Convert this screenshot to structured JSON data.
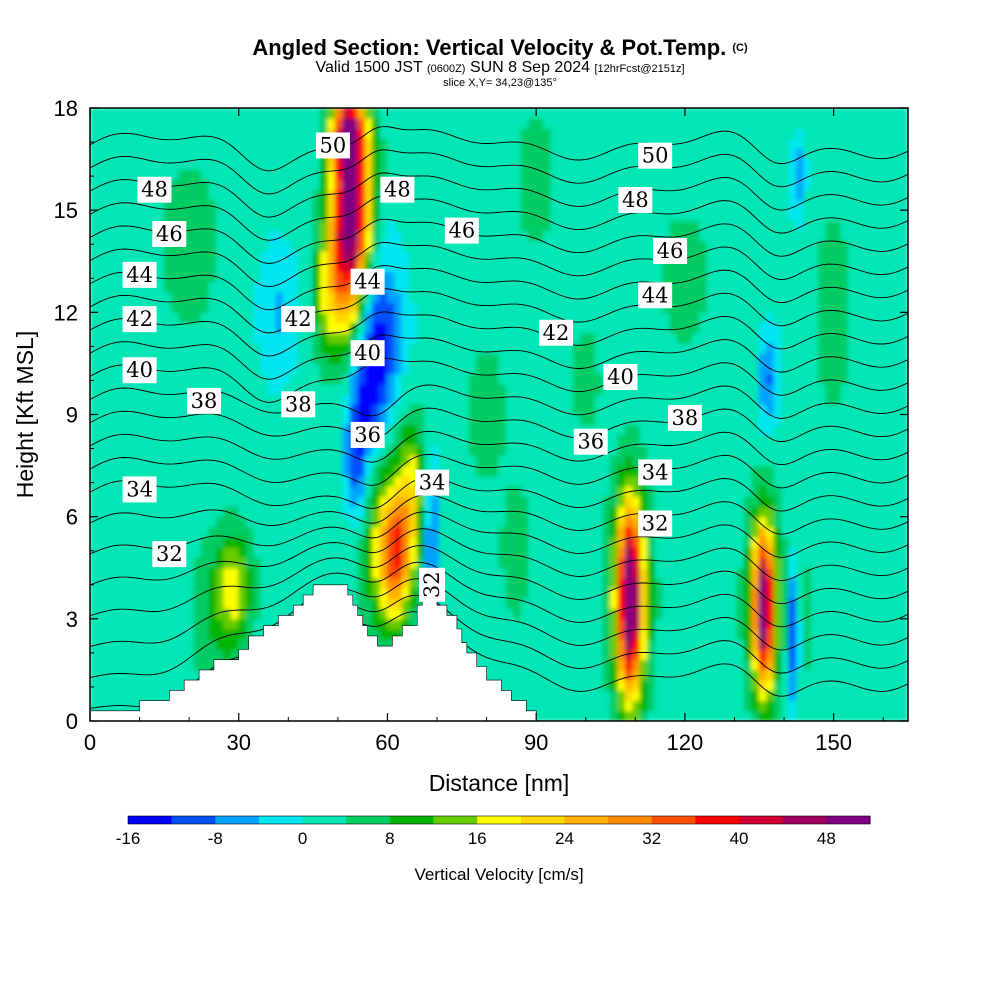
{
  "title": {
    "main": "Angled Section: Vertical Velocity & Pot.Temp.",
    "copyright": "(C)",
    "valid_prefix": "Valid 1500 JST",
    "valid_utc": "(0600Z)",
    "valid_date": "SUN 8 Sep 2024",
    "forecast": "[12hrFcst@2151z]",
    "slice": "slice X,Y= 34,23@135°"
  },
  "chart_data": {
    "type": "heatmap",
    "xlabel": "Distance [nm]",
    "ylabel": "Height [Kft MSL]",
    "xlim": [
      0,
      165
    ],
    "ylim": [
      0,
      18
    ],
    "x_ticks": [
      "0",
      "30",
      "60",
      "90",
      "120",
      "150"
    ],
    "y_ticks": [
      "0",
      "3",
      "6",
      "9",
      "12",
      "15",
      "18"
    ],
    "colorbar": {
      "label": "Vertical Velocity [cm/s]",
      "tick_labels": [
        "-16",
        "-8",
        "0",
        "8",
        "16",
        "24",
        "32",
        "40",
        "48"
      ],
      "bins": [
        -16,
        -12,
        -8,
        -4,
        0,
        4,
        8,
        12,
        16,
        20,
        24,
        28,
        32,
        36,
        40,
        44,
        48,
        52
      ],
      "colors": [
        "#0000ff",
        "#0050ff",
        "#00a0ff",
        "#00e6f0",
        "#00e6b4",
        "#00cc64",
        "#00b400",
        "#66cc00",
        "#ffff00",
        "#ffd700",
        "#ffb000",
        "#ff8c00",
        "#ff5000",
        "#ff0000",
        "#d00030",
        "#a00060",
        "#800080"
      ]
    },
    "terrain_kft": [
      [
        0,
        0.3
      ],
      [
        10,
        0.3
      ],
      [
        10,
        0.6
      ],
      [
        16,
        0.6
      ],
      [
        16,
        0.9
      ],
      [
        19,
        0.9
      ],
      [
        19,
        1.2
      ],
      [
        22,
        1.2
      ],
      [
        22,
        1.5
      ],
      [
        25,
        1.5
      ],
      [
        25,
        1.8
      ],
      [
        30,
        1.8
      ],
      [
        30,
        2.1
      ],
      [
        32,
        2.1
      ],
      [
        32,
        2.5
      ],
      [
        35,
        2.5
      ],
      [
        35,
        2.8
      ],
      [
        38,
        2.8
      ],
      [
        38,
        3.1
      ],
      [
        41,
        3.1
      ],
      [
        41,
        3.4
      ],
      [
        43,
        3.4
      ],
      [
        43,
        3.7
      ],
      [
        45,
        3.7
      ],
      [
        45,
        4.0
      ],
      [
        52,
        4.0
      ],
      [
        52,
        3.7
      ],
      [
        53,
        3.7
      ],
      [
        53,
        3.4
      ],
      [
        54,
        3.4
      ],
      [
        54,
        3.1
      ],
      [
        55,
        3.1
      ],
      [
        55,
        2.8
      ],
      [
        56,
        2.8
      ],
      [
        56,
        2.5
      ],
      [
        58,
        2.5
      ],
      [
        58,
        2.2
      ],
      [
        61,
        2.2
      ],
      [
        61,
        2.5
      ],
      [
        63,
        2.5
      ],
      [
        63,
        2.8
      ],
      [
        66,
        2.8
      ],
      [
        66,
        3.4
      ],
      [
        67,
        3.4
      ],
      [
        67,
        4.0
      ],
      [
        68,
        4.0
      ],
      [
        68,
        4.4
      ],
      [
        69,
        4.4
      ],
      [
        69,
        4.0
      ],
      [
        70,
        4.0
      ],
      [
        70,
        3.4
      ],
      [
        72,
        3.4
      ],
      [
        72,
        3.1
      ],
      [
        74,
        3.1
      ],
      [
        74,
        2.7
      ],
      [
        75,
        2.7
      ],
      [
        75,
        2.3
      ],
      [
        76,
        2.3
      ],
      [
        76,
        2.0
      ],
      [
        78,
        2.0
      ],
      [
        78,
        1.6
      ],
      [
        80,
        1.6
      ],
      [
        80,
        1.2
      ],
      [
        83,
        1.2
      ],
      [
        83,
        0.9
      ],
      [
        85,
        0.9
      ],
      [
        85,
        0.6
      ],
      [
        88,
        0.6
      ],
      [
        88,
        0.3
      ],
      [
        90,
        0.3
      ],
      [
        90,
        0
      ],
      [
        0,
        0
      ]
    ],
    "vv_blobs": [
      {
        "x": 53,
        "y": 15.5,
        "rx": 4,
        "ry": 3.2,
        "value": 36
      },
      {
        "x": 52,
        "y": 13.8,
        "rx": 3.5,
        "ry": 2.5,
        "value": 22
      },
      {
        "x": 48,
        "y": 12.5,
        "rx": 3,
        "ry": 2,
        "value": 12
      },
      {
        "x": 52,
        "y": 17.2,
        "rx": 3,
        "ry": 1,
        "value": 28
      },
      {
        "x": 58,
        "y": 11.5,
        "rx": 5,
        "ry": 2.5,
        "value": -14
      },
      {
        "x": 57,
        "y": 9.8,
        "rx": 3,
        "ry": 1.5,
        "value": -10
      },
      {
        "x": 54,
        "y": 7.8,
        "rx": 2.5,
        "ry": 2,
        "value": -14
      },
      {
        "x": 60,
        "y": 5,
        "rx": 5,
        "ry": 2.5,
        "value": 16
      },
      {
        "x": 62,
        "y": 5,
        "rx": 3,
        "ry": 1.8,
        "value": 22
      },
      {
        "x": 65,
        "y": 7,
        "rx": 2.5,
        "ry": 2,
        "value": 14
      },
      {
        "x": 69,
        "y": 5,
        "rx": 1,
        "ry": 2.5,
        "value": -16
      },
      {
        "x": 29,
        "y": 4,
        "rx": 3.5,
        "ry": 1.5,
        "value": 14
      },
      {
        "x": 26,
        "y": 3,
        "rx": 6,
        "ry": 2.5,
        "value": 6
      },
      {
        "x": 109,
        "y": 3.7,
        "rx": 4,
        "ry": 3.3,
        "value": 20
      },
      {
        "x": 109,
        "y": 3.5,
        "rx": 2.2,
        "ry": 2.6,
        "value": 38
      },
      {
        "x": 136,
        "y": 3.5,
        "rx": 3.5,
        "ry": 2.8,
        "value": 18
      },
      {
        "x": 136,
        "y": 3.3,
        "rx": 1.8,
        "ry": 2.2,
        "value": 36
      },
      {
        "x": 142,
        "y": 2.5,
        "rx": 1,
        "ry": 2,
        "value": -15
      },
      {
        "x": 145,
        "y": 3,
        "rx": 1.5,
        "ry": 2,
        "value": 5
      },
      {
        "x": 137,
        "y": 10,
        "rx": 2,
        "ry": 1.5,
        "value": -10
      },
      {
        "x": 143,
        "y": 16,
        "rx": 1.5,
        "ry": 1.2,
        "value": -8
      },
      {
        "x": 38,
        "y": 12,
        "rx": 4,
        "ry": 2,
        "value": -6
      },
      {
        "x": 100,
        "y": 10,
        "rx": 3,
        "ry": 1.5,
        "value": 6
      },
      {
        "x": 120,
        "y": 13,
        "rx": 5,
        "ry": 2,
        "value": 6
      },
      {
        "x": 20,
        "y": 14,
        "rx": 6,
        "ry": 2.5,
        "value": 6
      },
      {
        "x": 80,
        "y": 9,
        "rx": 4,
        "ry": 2,
        "value": 6
      },
      {
        "x": 86,
        "y": 5,
        "rx": 3,
        "ry": 2,
        "value": 6
      },
      {
        "x": 150,
        "y": 12,
        "rx": 4,
        "ry": 3,
        "value": 6
      },
      {
        "x": 90,
        "y": 16,
        "rx": 4,
        "ry": 2,
        "value": 6
      }
    ],
    "isentropes_c": [
      28,
      29,
      30,
      31,
      32,
      33,
      34,
      35,
      36,
      37,
      38,
      39,
      40,
      41,
      42,
      43,
      44,
      45,
      46,
      47,
      48,
      49,
      50,
      51
    ],
    "isentrope_labels": [
      {
        "text": "50",
        "x": 49,
        "y": 16.9
      },
      {
        "text": "50",
        "x": 114,
        "y": 16.6
      },
      {
        "text": "48",
        "x": 13,
        "y": 15.6
      },
      {
        "text": "48",
        "x": 62,
        "y": 15.6
      },
      {
        "text": "48",
        "x": 110,
        "y": 15.3
      },
      {
        "text": "46",
        "x": 16,
        "y": 14.3
      },
      {
        "text": "46",
        "x": 75,
        "y": 14.4
      },
      {
        "text": "46",
        "x": 117,
        "y": 13.8
      },
      {
        "text": "44",
        "x": 10,
        "y": 13.1
      },
      {
        "text": "44",
        "x": 56,
        "y": 12.9
      },
      {
        "text": "44",
        "x": 114,
        "y": 12.5
      },
      {
        "text": "42",
        "x": 10,
        "y": 11.8
      },
      {
        "text": "42",
        "x": 42,
        "y": 11.8
      },
      {
        "text": "42",
        "x": 94,
        "y": 11.4
      },
      {
        "text": "40",
        "x": 10,
        "y": 10.3
      },
      {
        "text": "40",
        "x": 56,
        "y": 10.8
      },
      {
        "text": "40",
        "x": 107,
        "y": 10.1
      },
      {
        "text": "38",
        "x": 23,
        "y": 9.4
      },
      {
        "text": "38",
        "x": 42,
        "y": 9.3
      },
      {
        "text": "38",
        "x": 120,
        "y": 8.9
      },
      {
        "text": "36",
        "x": 56,
        "y": 8.4
      },
      {
        "text": "36",
        "x": 101,
        "y": 8.2
      },
      {
        "text": "34",
        "x": 10,
        "y": 6.8
      },
      {
        "text": "34",
        "x": 69,
        "y": 7.0
      },
      {
        "text": "34",
        "x": 114,
        "y": 7.3
      },
      {
        "text": "32",
        "x": 16,
        "y": 4.9
      },
      {
        "text": "32",
        "x": 114,
        "y": 5.8
      },
      {
        "text": "32",
        "x": 69,
        "y": 4.0
      }
    ]
  }
}
